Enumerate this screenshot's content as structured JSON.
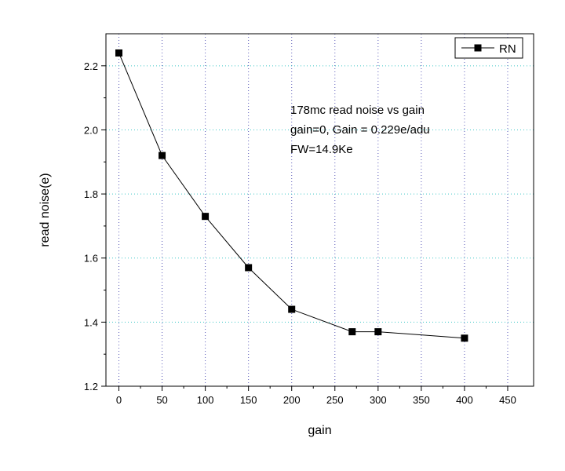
{
  "chart_data": {
    "type": "line",
    "title": "",
    "xlabel": "gain",
    "ylabel": "read noise(e)",
    "xlim": [
      -15,
      480
    ],
    "ylim": [
      1.2,
      2.3
    ],
    "xticks": [
      0,
      50,
      100,
      150,
      200,
      250,
      300,
      350,
      400,
      450
    ],
    "yticks": [
      1.2,
      1.4,
      1.6,
      1.8,
      2.0,
      2.2
    ],
    "ytick_labels": [
      "1.2",
      "1.4",
      "1.6",
      "1.8",
      "2.0",
      "2.2"
    ],
    "grid": true,
    "legend_position": "top-right",
    "series": [
      {
        "name": "RN",
        "x": [
          0,
          50,
          100,
          150,
          200,
          270,
          300,
          400
        ],
        "y": [
          2.24,
          1.92,
          1.73,
          1.57,
          1.44,
          1.37,
          1.37,
          1.35
        ],
        "marker": "square",
        "color": "#000000"
      }
    ],
    "annotations": [
      "178mc read noise vs gain",
      "gain=0, Gain = 0.229e/adu",
      "FW=14.9Ke"
    ],
    "colors": {
      "grid_x": "#5a5ab8",
      "grid_y": "#40c8c8",
      "line": "#000000"
    }
  }
}
